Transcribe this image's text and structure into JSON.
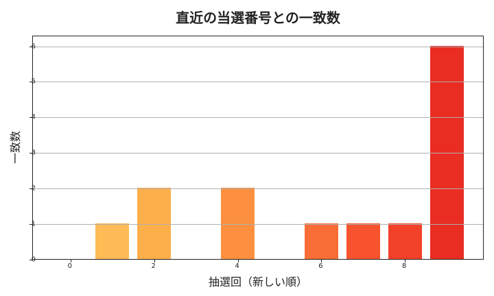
{
  "chart_data": {
    "type": "bar",
    "title": "直近の当選番号との一致数",
    "xlabel": "抽選回（新しい順）",
    "ylabel": "一致数",
    "x": [
      0,
      1,
      2,
      3,
      4,
      5,
      6,
      7,
      8,
      9
    ],
    "values": [
      0,
      1,
      2,
      0,
      2,
      0,
      1,
      1,
      1,
      6
    ],
    "colors": [
      "#fec25c",
      "#febb56",
      "#fdaf4b",
      "#fd9f44",
      "#fc903f",
      "#fc7d38",
      "#f76d35",
      "#f6532e",
      "#f24129",
      "#e92d22"
    ],
    "xticks": [
      0,
      2,
      4,
      6,
      8
    ],
    "yticks": [
      0,
      1,
      2,
      3,
      4,
      5,
      6
    ],
    "xlim": [
      -0.9,
      9.9
    ],
    "ylim": [
      0,
      6.3
    ],
    "grid": "y",
    "legend": null
  }
}
